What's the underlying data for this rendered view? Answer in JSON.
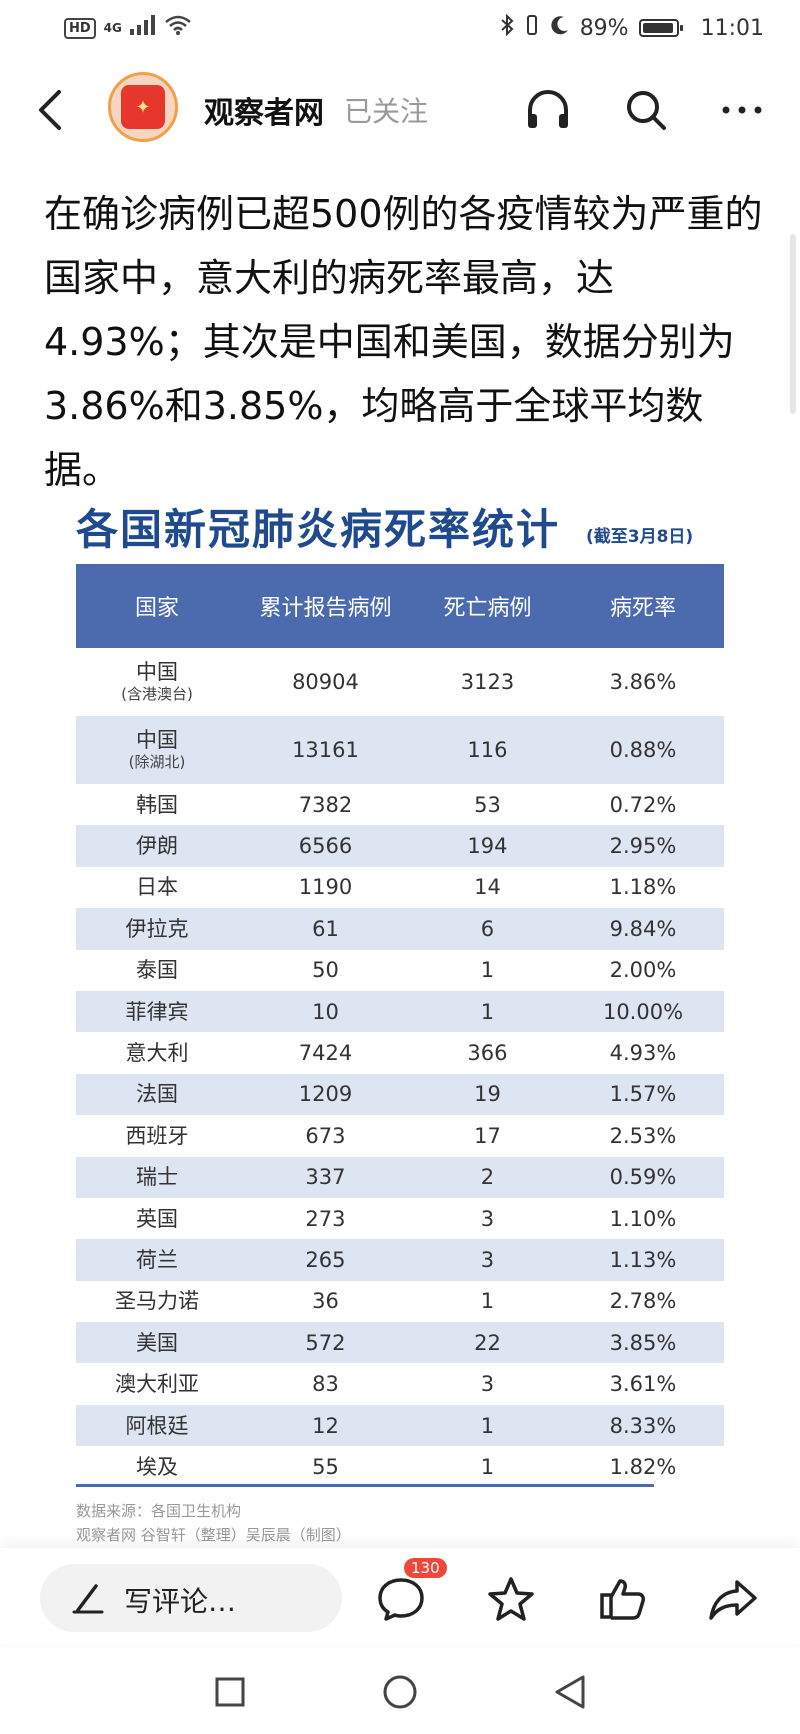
{
  "status_bar": {
    "network": "HD",
    "signal": "4G",
    "battery_percent": "89%",
    "time": "11:01"
  },
  "nav": {
    "source_name": "观察者网",
    "follow_state": "已关注"
  },
  "article": {
    "paragraph": "在确诊病例已超500例的各疫情较为严重的国家中，意大利的病死率最高，达4.93%；其次是中国和美国，数据分别为3.86%和3.85%，均略高于全球平均数据。"
  },
  "infographic": {
    "title": "各国新冠肺炎病死率统计",
    "date_note": "(截至3月8日)",
    "headers": [
      "国家",
      "累计报告病例",
      "死亡病例",
      "病死率"
    ],
    "rows": [
      {
        "country": "中国",
        "sub": "(含港澳台)",
        "cases": "80904",
        "deaths": "3123",
        "rate": "3.86%"
      },
      {
        "country": "中国",
        "sub": "(除湖北)",
        "cases": "13161",
        "deaths": "116",
        "rate": "0.88%"
      },
      {
        "country": "韩国",
        "cases": "7382",
        "deaths": "53",
        "rate": "0.72%"
      },
      {
        "country": "伊朗",
        "cases": "6566",
        "deaths": "194",
        "rate": "2.95%"
      },
      {
        "country": "日本",
        "cases": "1190",
        "deaths": "14",
        "rate": "1.18%"
      },
      {
        "country": "伊拉克",
        "cases": "61",
        "deaths": "6",
        "rate": "9.84%"
      },
      {
        "country": "泰国",
        "cases": "50",
        "deaths": "1",
        "rate": "2.00%"
      },
      {
        "country": "菲律宾",
        "cases": "10",
        "deaths": "1",
        "rate": "10.00%"
      },
      {
        "country": "意大利",
        "cases": "7424",
        "deaths": "366",
        "rate": "4.93%"
      },
      {
        "country": "法国",
        "cases": "1209",
        "deaths": "19",
        "rate": "1.57%"
      },
      {
        "country": "西班牙",
        "cases": "673",
        "deaths": "17",
        "rate": "2.53%"
      },
      {
        "country": "瑞士",
        "cases": "337",
        "deaths": "2",
        "rate": "0.59%"
      },
      {
        "country": "英国",
        "cases": "273",
        "deaths": "3",
        "rate": "1.10%"
      },
      {
        "country": "荷兰",
        "cases": "265",
        "deaths": "3",
        "rate": "1.13%"
      },
      {
        "country": "圣马力诺",
        "cases": "36",
        "deaths": "1",
        "rate": "2.78%"
      },
      {
        "country": "美国",
        "cases": "572",
        "deaths": "22",
        "rate": "3.85%"
      },
      {
        "country": "澳大利亚",
        "cases": "83",
        "deaths": "3",
        "rate": "3.61%"
      },
      {
        "country": "阿根廷",
        "cases": "12",
        "deaths": "1",
        "rate": "8.33%"
      },
      {
        "country": "埃及",
        "cases": "55",
        "deaths": "1",
        "rate": "1.82%"
      }
    ],
    "footnote_source": "数据来源：各国卫生机构",
    "footnote_credit": "观察者网 谷智轩（整理）吴辰晨（制图）"
  },
  "bottom_bar": {
    "comment_placeholder": "写评论…",
    "comment_count": "130"
  },
  "colors": {
    "header_blue": "#4c6aae",
    "title_blue": "#1f4b8e",
    "alt_row": "#dde4f2",
    "badge_red": "#f0473b"
  }
}
